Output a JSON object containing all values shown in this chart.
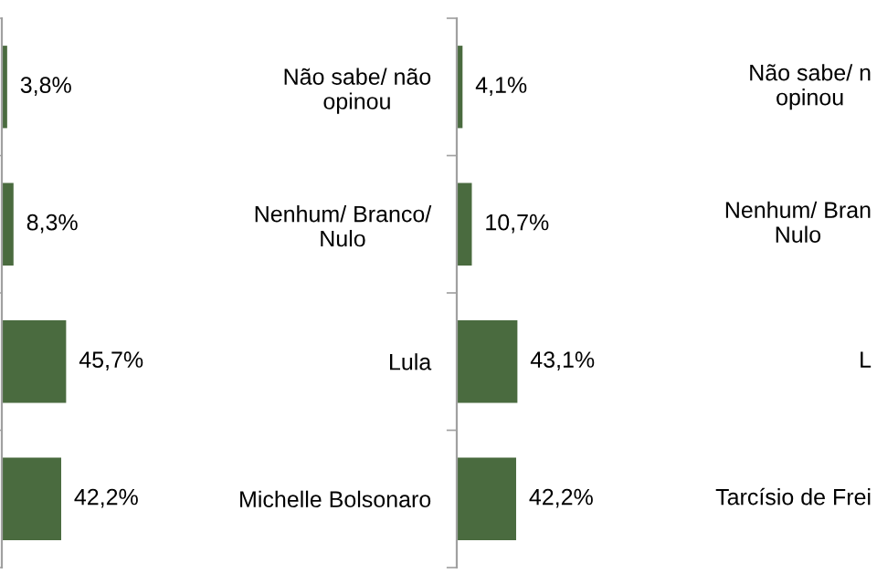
{
  "chart_data": [
    {
      "type": "bar",
      "orientation": "horizontal",
      "categories": [
        null,
        null,
        null,
        null
      ],
      "series": [
        {
          "color": "#4a6b3f",
          "values": [
            3.8,
            8.3,
            45.7,
            42.2
          ],
          "value_labels": [
            "3,8%",
            "8,3%",
            "45,7%",
            "42,2%"
          ]
        }
      ],
      "grid": false,
      "legend": false
    },
    {
      "type": "bar",
      "orientation": "horizontal",
      "categories": [
        "Não sabe/ não\nopinou",
        "Nenhum/ Branco/\nNulo",
        "Lula",
        "Michelle Bolsonaro"
      ],
      "series": [
        {
          "color": "#4a6b3f",
          "values": [
            4.1,
            10.7,
            43.1,
            42.2
          ],
          "value_labels": [
            "4,1%",
            "10,7%",
            "43,1%",
            "42,2%"
          ]
        }
      ],
      "grid": false,
      "legend": false
    },
    {
      "type": "other",
      "annotations": [
        "Não sabe/ n\nopinou",
        "Nenhum/ Bran\nNulo",
        "L",
        "Tarcísio de Frei"
      ]
    }
  ]
}
